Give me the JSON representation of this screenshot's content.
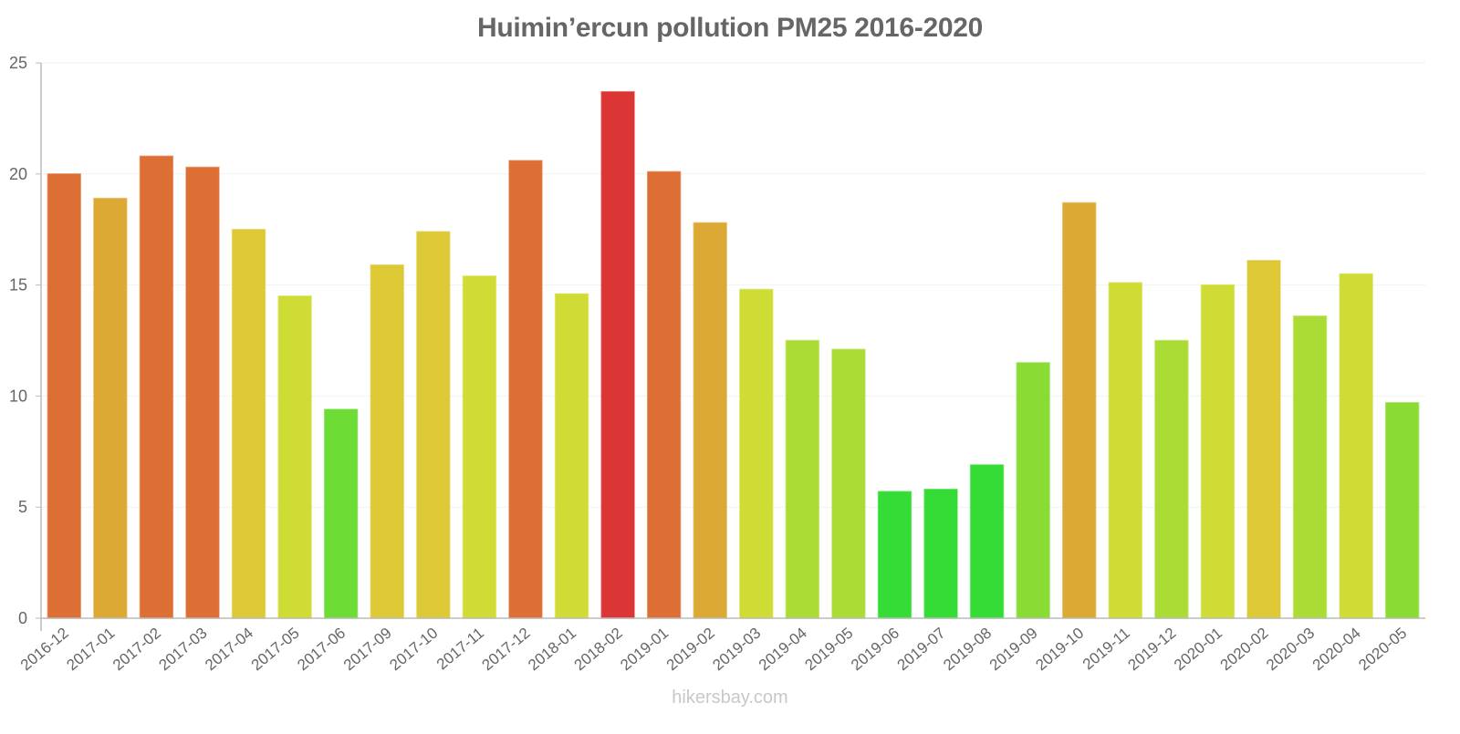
{
  "title": "Huimin’ercun pollution PM25 2016-2020",
  "watermark": "hikersbay.com",
  "chart_data": {
    "type": "bar",
    "title": "Huimin’ercun pollution PM25 2016-2020",
    "xlabel": "",
    "ylabel": "",
    "ylim": [
      0,
      25
    ],
    "yticks": [
      0,
      5,
      10,
      15,
      20,
      25
    ],
    "grid": true,
    "legend": "none",
    "categories": [
      "2016-12",
      "2017-01",
      "2017-02",
      "2017-03",
      "2017-04",
      "2017-05",
      "2017-06",
      "2017-09",
      "2017-10",
      "2017-11",
      "2017-12",
      "2018-01",
      "2018-02",
      "2019-01",
      "2019-02",
      "2019-03",
      "2019-04",
      "2019-05",
      "2019-06",
      "2019-07",
      "2019-08",
      "2019-09",
      "2019-10",
      "2019-11",
      "2019-12",
      "2020-01",
      "2020-02",
      "2020-03",
      "2020-04",
      "2020-05"
    ],
    "values": [
      20.0,
      18.9,
      20.8,
      20.3,
      17.5,
      14.5,
      9.4,
      15.9,
      17.4,
      15.4,
      20.6,
      14.6,
      23.7,
      20.1,
      17.8,
      14.8,
      12.5,
      12.1,
      5.7,
      5.8,
      6.9,
      11.5,
      18.7,
      15.1,
      12.5,
      15.0,
      16.1,
      13.6,
      15.5,
      9.7
    ],
    "colors": [
      "#DE6F34",
      "#DCA935",
      "#DE6F34",
      "#DE6F34",
      "#DCC935",
      "#CFDC35",
      "#6DDC35",
      "#DCC935",
      "#DCC935",
      "#CFDC35",
      "#DE6F34",
      "#CFDC35",
      "#DC3535",
      "#DE6F34",
      "#DCA935",
      "#CFDC35",
      "#AADC35",
      "#AADC35",
      "#35DC35",
      "#35DC35",
      "#35DC35",
      "#8ADC35",
      "#DCA935",
      "#CFDC35",
      "#AADC35",
      "#CFDC35",
      "#DCC935",
      "#AADC35",
      "#CFDC35",
      "#8ADC35"
    ]
  },
  "style": {
    "axis_color": "#bbbbbb",
    "grid_color": "#f2f2f2",
    "text_color": "#666666"
  }
}
